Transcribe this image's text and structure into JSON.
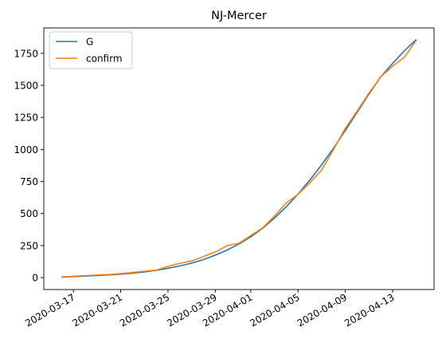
{
  "chart_data": {
    "type": "line",
    "title": "NJ-Mercer",
    "xlabel": "",
    "ylabel": "",
    "x_dates": [
      "2020-03-16",
      "2020-03-17",
      "2020-03-18",
      "2020-03-19",
      "2020-03-20",
      "2020-03-21",
      "2020-03-22",
      "2020-03-23",
      "2020-03-24",
      "2020-03-25",
      "2020-03-26",
      "2020-03-27",
      "2020-03-28",
      "2020-03-29",
      "2020-03-30",
      "2020-03-31",
      "2020-04-01",
      "2020-04-02",
      "2020-04-03",
      "2020-04-04",
      "2020-04-05",
      "2020-04-06",
      "2020-04-07",
      "2020-04-08",
      "2020-04-09",
      "2020-04-10",
      "2020-04-11",
      "2020-04-12",
      "2020-04-13",
      "2020-04-14",
      "2020-04-15"
    ],
    "x_tick_labels": [
      "2020-03-17",
      "2020-03-21",
      "2020-03-25",
      "2020-03-29",
      "2020-04-01",
      "2020-04-05",
      "2020-04-09",
      "2020-04-13"
    ],
    "y_ticks": [
      0,
      250,
      500,
      750,
      1000,
      1250,
      1500,
      1750
    ],
    "ylim": [
      -93,
      1948
    ],
    "legend_position": "upper left",
    "grid": false,
    "series": [
      {
        "name": "G",
        "color": "#1f77b4",
        "values": [
          4,
          8,
          12,
          16,
          21,
          27,
          35,
          44,
          57,
          73,
          91,
          113,
          141,
          175,
          215,
          262,
          318,
          385,
          464,
          553,
          652,
          762,
          880,
          1010,
          1148,
          1290,
          1432,
          1568,
          1672,
          1770,
          1858
        ]
      },
      {
        "name": "confirm",
        "color": "#ff7f0e",
        "values": [
          6,
          10,
          16,
          20,
          24,
          31,
          40,
          50,
          58,
          88,
          112,
          130,
          165,
          200,
          250,
          268,
          328,
          388,
          480,
          583,
          650,
          740,
          840,
          1000,
          1165,
          1300,
          1440,
          1568,
          1650,
          1720,
          1852
        ]
      }
    ]
  }
}
